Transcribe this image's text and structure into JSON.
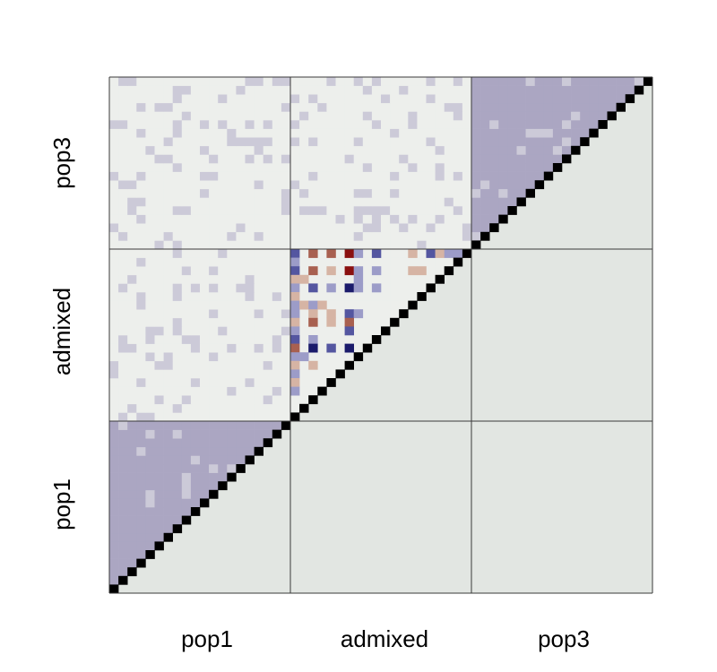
{
  "chart_data": {
    "type": "heatmap",
    "groups": [
      "pop1",
      "admixed",
      "pop3"
    ],
    "n_per_group": 20,
    "x_tick_labels": [
      "pop1",
      "admixed",
      "pop3"
    ],
    "y_tick_labels": [
      "pop1",
      "admixed",
      "pop3"
    ],
    "diagonal_value": 1,
    "colors": {
      "background_cell": "#e2e6e2",
      "within_pop_shade": "#aba6c2",
      "sparse_fill": "#edefec",
      "light_mark": "#cccad8",
      "diagonal": "#000000",
      "blue_strong": "#1b1b6b",
      "blue_mid": "#5456a0",
      "blue_light": "#9c9cc8",
      "red_strong": "#8a1010",
      "red_mid": "#a86050",
      "red_light": "#d6b4a4",
      "grid_line": "#3a3a3a"
    },
    "admixed_block_cells": [
      {
        "row": 0,
        "col": 0,
        "v": "blue_mid"
      },
      {
        "row": 0,
        "col": 2,
        "v": "red_mid"
      },
      {
        "row": 0,
        "col": 4,
        "v": "red_mid"
      },
      {
        "row": 0,
        "col": 6,
        "v": "red_strong"
      },
      {
        "row": 0,
        "col": 7,
        "v": "blue_light"
      },
      {
        "row": 0,
        "col": 9,
        "v": "blue_mid"
      },
      {
        "row": 0,
        "col": 13,
        "v": "red_light"
      },
      {
        "row": 0,
        "col": 15,
        "v": "blue_mid"
      },
      {
        "row": 0,
        "col": 16,
        "v": "red_light"
      },
      {
        "row": 0,
        "col": 17,
        "v": "blue_light"
      },
      {
        "row": 0,
        "col": 18,
        "v": "blue_light"
      },
      {
        "row": 1,
        "col": 0,
        "v": "blue_light"
      },
      {
        "row": 2,
        "col": 0,
        "v": "blue_mid"
      },
      {
        "row": 2,
        "col": 2,
        "v": "red_mid"
      },
      {
        "row": 2,
        "col": 4,
        "v": "red_light"
      },
      {
        "row": 2,
        "col": 6,
        "v": "red_strong"
      },
      {
        "row": 2,
        "col": 7,
        "v": "blue_light"
      },
      {
        "row": 2,
        "col": 9,
        "v": "blue_light"
      },
      {
        "row": 2,
        "col": 13,
        "v": "red_light"
      },
      {
        "row": 2,
        "col": 14,
        "v": "red_light"
      },
      {
        "row": 3,
        "col": 0,
        "v": "red_light"
      },
      {
        "row": 3,
        "col": 1,
        "v": "red_light"
      },
      {
        "row": 3,
        "col": 7,
        "v": "blue_light"
      },
      {
        "row": 4,
        "col": 0,
        "v": "blue_light"
      },
      {
        "row": 4,
        "col": 2,
        "v": "blue_mid"
      },
      {
        "row": 4,
        "col": 4,
        "v": "blue_light"
      },
      {
        "row": 4,
        "col": 6,
        "v": "blue_strong"
      },
      {
        "row": 4,
        "col": 7,
        "v": "blue_light"
      },
      {
        "row": 4,
        "col": 9,
        "v": "blue_light"
      },
      {
        "row": 5,
        "col": 0,
        "v": "red_light"
      },
      {
        "row": 6,
        "col": 0,
        "v": "blue_light"
      },
      {
        "row": 6,
        "col": 1,
        "v": "red_light"
      },
      {
        "row": 6,
        "col": 2,
        "v": "blue_light"
      },
      {
        "row": 6,
        "col": 3,
        "v": "red_light"
      },
      {
        "row": 7,
        "col": 0,
        "v": "blue_light"
      },
      {
        "row": 7,
        "col": 2,
        "v": "red_light"
      },
      {
        "row": 7,
        "col": 4,
        "v": "red_light"
      },
      {
        "row": 7,
        "col": 6,
        "v": "blue_mid"
      },
      {
        "row": 7,
        "col": 7,
        "v": "blue_light"
      },
      {
        "row": 8,
        "col": 0,
        "v": "red_light"
      },
      {
        "row": 8,
        "col": 2,
        "v": "red_mid"
      },
      {
        "row": 8,
        "col": 4,
        "v": "red_light"
      },
      {
        "row": 8,
        "col": 6,
        "v": "red_mid"
      },
      {
        "row": 9,
        "col": 0,
        "v": "blue_light"
      },
      {
        "row": 9,
        "col": 6,
        "v": "blue_mid"
      },
      {
        "row": 10,
        "col": 0,
        "v": "blue_mid"
      },
      {
        "row": 10,
        "col": 2,
        "v": "blue_light"
      },
      {
        "row": 11,
        "col": 0,
        "v": "red_mid"
      },
      {
        "row": 11,
        "col": 2,
        "v": "blue_strong"
      },
      {
        "row": 11,
        "col": 4,
        "v": "blue_mid"
      },
      {
        "row": 11,
        "col": 6,
        "v": "blue_strong"
      },
      {
        "row": 12,
        "col": 0,
        "v": "blue_light"
      },
      {
        "row": 12,
        "col": 1,
        "v": "blue_light"
      },
      {
        "row": 13,
        "col": 0,
        "v": "red_light"
      },
      {
        "row": 13,
        "col": 2,
        "v": "red_light"
      },
      {
        "row": 14,
        "col": 0,
        "v": "blue_light"
      },
      {
        "row": 15,
        "col": 0,
        "v": "red_light"
      },
      {
        "row": 16,
        "col": 0,
        "v": "blue_light"
      }
    ]
  }
}
